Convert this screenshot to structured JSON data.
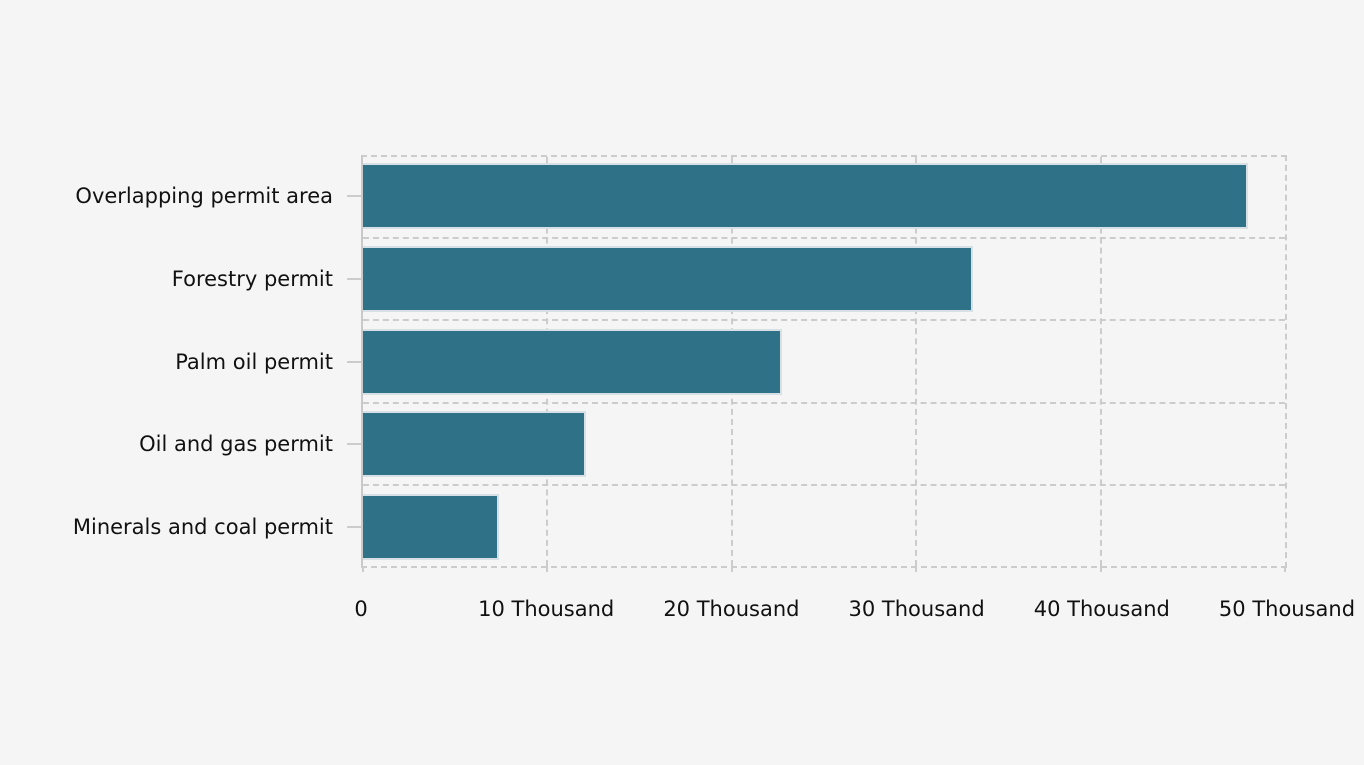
{
  "chart_data": {
    "type": "bar",
    "orientation": "horizontal",
    "title": "",
    "xlabel": "",
    "ylabel": "",
    "unit": "Thousand",
    "categories": [
      "Overlapping permit area",
      "Forestry permit",
      "Palm oil permit",
      "Oil and gas permit",
      "Minerals and coal permit"
    ],
    "values": [
      48.0,
      33.1,
      22.7,
      12.1,
      7.4
    ],
    "x_tick_values": [
      0,
      10,
      20,
      30,
      40,
      50
    ],
    "x_tick_labels": [
      "0",
      "10 Thousand",
      "20 Thousand",
      "30 Thousand",
      "40 Thousand",
      "50 Thousand"
    ],
    "xlim": [
      0,
      50
    ],
    "grid": "dashed",
    "legend": "none",
    "colors": {
      "bar": "#2f7288",
      "bar_border": "#d7e1e5",
      "background": "#f5f5f5",
      "grid": "#cccccc",
      "axis": "#c9c9c9",
      "text": "#111111"
    }
  }
}
